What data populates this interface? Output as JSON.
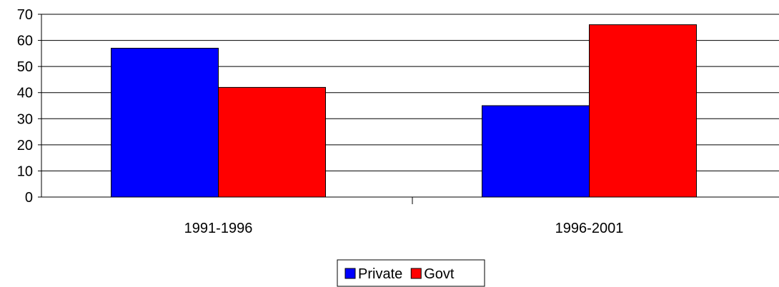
{
  "chart_data": {
    "type": "bar",
    "categories": [
      "1991-1996",
      "1996-2001"
    ],
    "series": [
      {
        "name": "Private",
        "values": [
          57,
          35
        ],
        "color": "#0000ff"
      },
      {
        "name": "Govt",
        "values": [
          42,
          66
        ],
        "color": "#ff0000"
      }
    ],
    "title": "",
    "xlabel": "",
    "ylabel": "",
    "ylim": [
      0,
      70
    ],
    "yticks": [
      "0",
      "10",
      "20",
      "30",
      "40",
      "50",
      "60",
      "70"
    ],
    "grid": true,
    "legend": "bottom-center"
  }
}
